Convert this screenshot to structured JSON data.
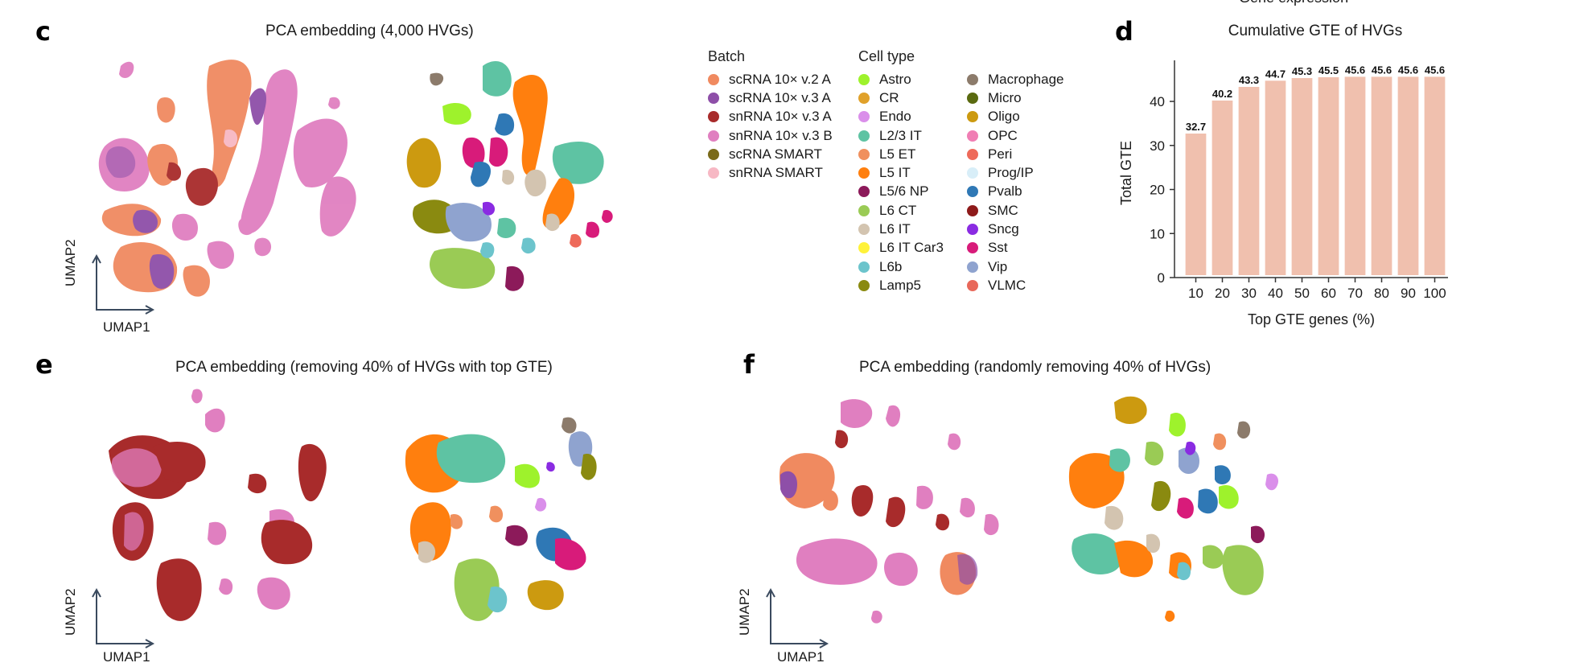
{
  "top_partial_text": "Gene expression",
  "panels": {
    "c": {
      "letter": "c",
      "title": "PCA embedding (4,000 HVGs)"
    },
    "d": {
      "letter": "d"
    },
    "e": {
      "letter": "e",
      "title": "PCA embedding (removing 40% of HVGs with top GTE)"
    },
    "f": {
      "letter": "f",
      "title": "PCA embedding (randomly removing 40% of HVGs)"
    }
  },
  "umap_axes": {
    "x": "UMAP1",
    "y": "UMAP2"
  },
  "legend": {
    "batch_title": "Batch",
    "batch": [
      {
        "label": "scRNA 10× v.2 A",
        "color": "#F08A60"
      },
      {
        "label": "scRNA 10× v.3 A",
        "color": "#8E4FA8"
      },
      {
        "label": "snRNA 10× v.3 A",
        "color": "#A82B2B"
      },
      {
        "label": "snRNA 10× v.3 B",
        "color": "#E07FC0"
      },
      {
        "label": "scRNA SMART",
        "color": "#7A6A1A"
      },
      {
        "label": "snRNA SMART",
        "color": "#F7B8C4"
      }
    ],
    "celltype_title": "Cell type",
    "celltype_col1": [
      {
        "label": "Astro",
        "color": "#9EF22C"
      },
      {
        "label": "CR",
        "color": "#E0A12A"
      },
      {
        "label": "Endo",
        "color": "#DA8FEA"
      },
      {
        "label": "L2/3 IT",
        "color": "#5EC3A3"
      },
      {
        "label": "L5 ET",
        "color": "#F0905E"
      },
      {
        "label": "L5 IT",
        "color": "#FF7F0E"
      },
      {
        "label": "L5/6 NP",
        "color": "#8C1A5A"
      },
      {
        "label": "L6 CT",
        "color": "#9ACB55"
      },
      {
        "label": "L6 IT",
        "color": "#D3C4B0"
      },
      {
        "label": "L6 IT Car3",
        "color": "#FFF23A"
      },
      {
        "label": "L6b",
        "color": "#6CC4CC"
      },
      {
        "label": "Lamp5",
        "color": "#8A8A10"
      }
    ],
    "celltype_col2": [
      {
        "label": "Macrophage",
        "color": "#8C7B6B"
      },
      {
        "label": "Micro",
        "color": "#5A6A10"
      },
      {
        "label": "Oligo",
        "color": "#CC9A10"
      },
      {
        "label": "OPC",
        "color": "#F07EB4"
      },
      {
        "label": "Peri",
        "color": "#EE6A5A"
      },
      {
        "label": "Prog/IP",
        "color": "#D8EEF8"
      },
      {
        "label": "Pvalb",
        "color": "#2F78B5"
      },
      {
        "label": "SMC",
        "color": "#8E1A1A"
      },
      {
        "label": "Sncg",
        "color": "#8A2BE2"
      },
      {
        "label": "Sst",
        "color": "#D81B7A"
      },
      {
        "label": "Vip",
        "color": "#8FA3CF"
      },
      {
        "label": "VLMC",
        "color": "#E8685A"
      }
    ]
  },
  "chart_data": {
    "type": "bar",
    "title": "Cumulative GTE of HVGs",
    "xlabel": "Top GTE genes (%)",
    "ylabel": "Total GTE",
    "categories": [
      "10",
      "20",
      "30",
      "40",
      "50",
      "60",
      "70",
      "80",
      "90",
      "100"
    ],
    "values": [
      32.7,
      40.2,
      43.3,
      44.7,
      45.3,
      45.5,
      45.6,
      45.6,
      45.6,
      45.6
    ],
    "value_labels": [
      "32.7",
      "40.2",
      "43.3",
      "44.7",
      "45.3",
      "45.5",
      "45.6",
      "45.6",
      "45.6",
      "45.6"
    ],
    "yticks": [
      0,
      10,
      20,
      30,
      40
    ],
    "ytick_labels": [
      "0",
      "10",
      "20",
      "30",
      "40"
    ],
    "ylim": [
      0,
      47.5
    ],
    "bar_color": "#F0C0AE"
  }
}
